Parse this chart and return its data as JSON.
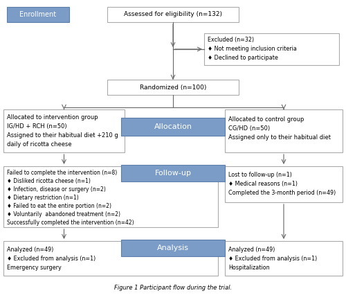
{
  "title": "Figure 1 Participant flow during the trial.",
  "bg_color": "#ffffff",
  "box_edge_color": "#aaaaaa",
  "blue_fill": "#7b9cc7",
  "blue_edge": "#5a7daa",
  "blue_text_color": "#ffffff",
  "text_color": "#000000",
  "arrow_color": "#666666",
  "enrollment_text": "Enrollment",
  "assessed_text": "Assessed for eligibility (n=132)",
  "excluded_lines": [
    "Excluded (n=32)",
    "♦ Not meeting inclusion criteria",
    "♦ Declined to participate"
  ],
  "randomized_text": "Randomized (n=100)",
  "allocation_text": "Allocation",
  "intervention_lines": [
    "Allocated to intervention group",
    "IG/HD + RCH (n=50)",
    "Assigned to their habitual diet +210 g",
    "daily of ricotta cheese"
  ],
  "control_lines": [
    "Allocated to control group",
    "CG/HD (n=50)",
    "Assigned only to their habitual diet"
  ],
  "followup_text": "Follow-up",
  "left_followup_lines": [
    "Failed to complete the intervention (n=8)",
    "♦ Disliked ricotta cheese (n=1)",
    "♦ Infection, disease or surgery (n=2)",
    "♦ Dietary restriction (n=1)",
    "♦ Failed to eat the entire portion (n=2)",
    "♦ Voluntarily  abandoned treatment (n=2)",
    "Successfully completed the intervention (n=42)"
  ],
  "right_followup_lines": [
    "Lost to follow-up (n=1)",
    "♦ Medical reasons (n=1)",
    "Completed the 3-month period (n=49)"
  ],
  "analysis_text": "Analysis",
  "left_analysis_lines": [
    "Analyzed (n=49)",
    "♦ Excluded from analysis (n=1)",
    "Emergency surgery"
  ],
  "right_analysis_lines": [
    "Analyzed (n=49)",
    "♦ Excluded from analysis (n=1)",
    "Hospitalization"
  ]
}
